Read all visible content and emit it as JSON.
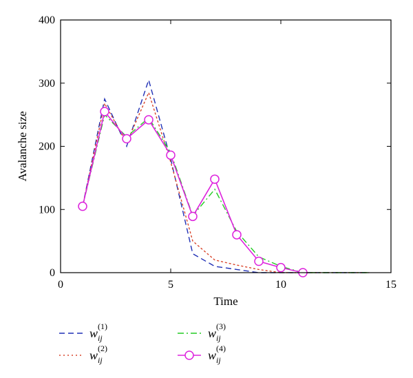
{
  "chart_data": {
    "type": "line",
    "xlabel": "Time",
    "ylabel": "Avalanche size",
    "xlim": [
      0,
      15
    ],
    "ylim": [
      0,
      400
    ],
    "xticks": [
      0,
      5,
      10,
      15
    ],
    "yticks": [
      0,
      100,
      200,
      300,
      400
    ],
    "grid": false,
    "legend_position": "bottom",
    "series": [
      {
        "name": "w_ij^(1)",
        "legend_base": "w",
        "legend_sub": "ij",
        "legend_sup": "(1)",
        "color": "#1f2fb5",
        "style": "dashed",
        "x": [
          1,
          2,
          3,
          4,
          5,
          6,
          7,
          8,
          9,
          10,
          11,
          12,
          13,
          14
        ],
        "y": [
          105,
          275,
          200,
          305,
          180,
          30,
          10,
          5,
          0,
          0,
          0,
          0,
          0,
          0
        ]
      },
      {
        "name": "w_ij^(2)",
        "legend_base": "w",
        "legend_sub": "ij",
        "legend_sup": "(2)",
        "color": "#d9452b",
        "style": "dotted",
        "x": [
          1,
          2,
          3,
          4,
          5,
          6,
          7,
          8,
          9,
          10,
          11,
          12,
          13,
          14
        ],
        "y": [
          105,
          268,
          205,
          285,
          175,
          50,
          20,
          12,
          5,
          0,
          0,
          0,
          0,
          0
        ]
      },
      {
        "name": "w_ij^(3)",
        "legend_base": "w",
        "legend_sub": "ij",
        "legend_sup": "(3)",
        "color": "#22cc22",
        "style": "dashdot",
        "x": [
          1,
          2,
          3,
          4,
          5,
          6,
          7,
          8,
          9,
          10,
          11,
          12,
          13,
          14
        ],
        "y": [
          105,
          250,
          215,
          245,
          190,
          90,
          132,
          65,
          25,
          10,
          0,
          0,
          0,
          0
        ]
      },
      {
        "name": "w_ij^(4)",
        "legend_base": "w",
        "legend_sub": "ij",
        "legend_sup": "(4)",
        "color": "#dd22dd",
        "style": "solid-circle",
        "x": [
          1,
          2,
          3,
          4,
          5,
          6,
          7,
          8,
          9,
          10,
          11
        ],
        "y": [
          105,
          255,
          212,
          242,
          186,
          89,
          148,
          60,
          18,
          8,
          0
        ]
      }
    ]
  }
}
